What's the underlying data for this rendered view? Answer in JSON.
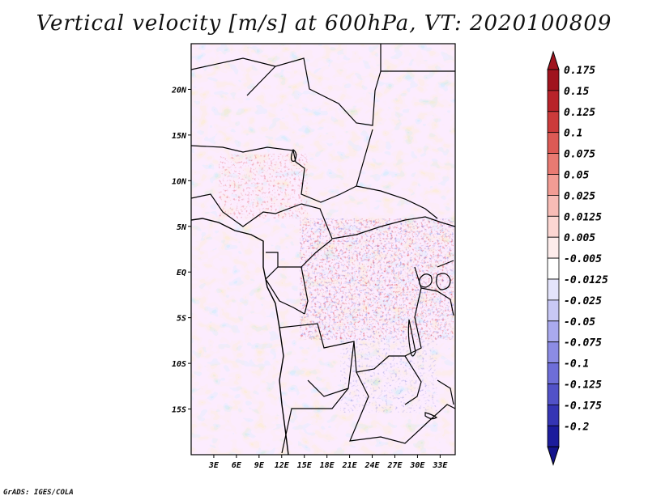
{
  "title": "Vertical velocity [m/s] at 600hPa, VT: 2020100809",
  "footer": "GrADS: IGES/COLA",
  "map": {
    "lon_range": [
      0,
      35
    ],
    "lat_range": [
      -20,
      25
    ],
    "lat_labels": [
      {
        "lat": 20,
        "label": "20N"
      },
      {
        "lat": 15,
        "label": "15N"
      },
      {
        "lat": 10,
        "label": "10N"
      },
      {
        "lat": 5,
        "label": "5N"
      },
      {
        "lat": 0,
        "label": "EQ"
      },
      {
        "lat": -5,
        "label": "5S"
      },
      {
        "lat": -10,
        "label": "10S"
      },
      {
        "lat": -15,
        "label": "15S"
      }
    ],
    "lon_labels": [
      {
        "lon": 3,
        "label": "3E"
      },
      {
        "lon": 6,
        "label": "6E"
      },
      {
        "lon": 9,
        "label": "9E"
      },
      {
        "lon": 12,
        "label": "12E"
      },
      {
        "lon": 15,
        "label": "15E"
      },
      {
        "lon": 18,
        "label": "18E"
      },
      {
        "lon": 21,
        "label": "21E"
      },
      {
        "lon": 24,
        "label": "24E"
      },
      {
        "lon": 27,
        "label": "27E"
      },
      {
        "lon": 30,
        "label": "30E"
      },
      {
        "lon": 33,
        "label": "33E"
      }
    ]
  },
  "colorbar": {
    "entries": [
      {
        "label": "0.175",
        "color": "#a0141e"
      },
      {
        "label": "0.15",
        "color": "#b8232a"
      },
      {
        "label": "0.125",
        "color": "#cc3b3b"
      },
      {
        "label": "0.1",
        "color": "#dc5a55"
      },
      {
        "label": "0.075",
        "color": "#e87a72"
      },
      {
        "label": "0.05",
        "color": "#f29c94"
      },
      {
        "label": "0.025",
        "color": "#f8bcb6"
      },
      {
        "label": "0.0125",
        "color": "#fcd6d2"
      },
      {
        "label": "0.005",
        "color": "#fdeceb"
      },
      {
        "label": "-0.005",
        "color": "#ffffff"
      },
      {
        "label": "-0.0125",
        "color": "#e4e4fb"
      },
      {
        "label": "-0.025",
        "color": "#c8c8f5"
      },
      {
        "label": "-0.05",
        "color": "#aaaaee"
      },
      {
        "label": "-0.075",
        "color": "#8c8ce4"
      },
      {
        "label": "-0.1",
        "color": "#6e6ed8"
      },
      {
        "label": "-0.125",
        "color": "#5252c8"
      },
      {
        "label": "-0.175",
        "color": "#3535b4"
      },
      {
        "label": "-0.2",
        "color": "#1c1c9c"
      }
    ],
    "top_color": "#a0141e",
    "bottom_color": "#14148c"
  }
}
